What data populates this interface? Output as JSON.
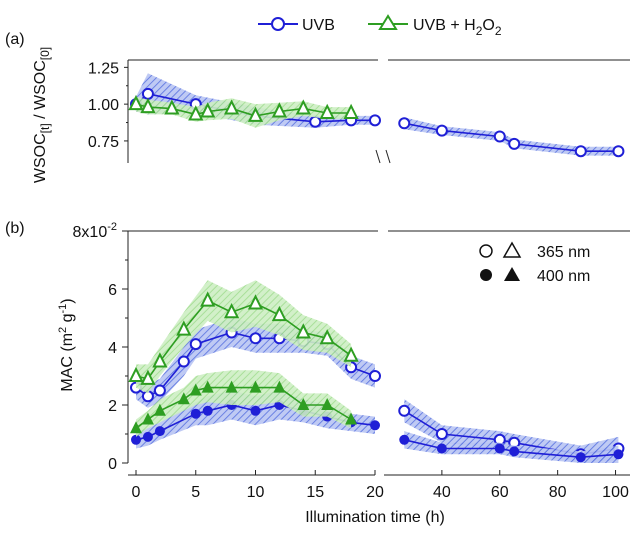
{
  "colors": {
    "uvb": "#1f1fd6",
    "uvb_h2o2": "#2e9e22",
    "uvb_band": "#6f86e6",
    "uvb_h2o2_band": "#8fdc7e",
    "axis": "#222222"
  },
  "legend": {
    "uvb": "UVB",
    "uvb_h2o2_prefix": "UVB + H",
    "sub2a": "2",
    "o": "O",
    "sub2b": "2"
  },
  "panel_a": {
    "tag": "(a)",
    "ylabel_main1": "WSOC",
    "ylabel_sub1": "[t]",
    "ylabel_mid": " / WSOC",
    "ylabel_sub2": "[0]",
    "yticks": [
      "0.75",
      "1.00",
      "1.25"
    ]
  },
  "panel_b": {
    "tag": "(b)",
    "ylabel_pre": "MAC  (m",
    "ylabel_sup1": "2",
    "ylabel_mid": " g",
    "ylabel_sup2": "-1",
    "ylabel_post": ")",
    "yticks": [
      "0",
      "2",
      "4",
      "6",
      "8x10"
    ],
    "ytop_exp": "-2",
    "legend_365": "365 nm",
    "legend_400": "400 nm"
  },
  "xaxis": {
    "left_ticks": [
      "0",
      "5",
      "10",
      "15",
      "20"
    ],
    "right_ticks": [
      "40",
      "60",
      "80",
      "100"
    ],
    "label": "Illumination  time (h)"
  },
  "chart_data": [
    {
      "type": "line",
      "panel": "a",
      "x_segments": [
        [
          0,
          20
        ],
        [
          20,
          105
        ]
      ],
      "ylim": [
        0.6,
        1.3
      ],
      "series": [
        {
          "name": "UVB",
          "marker": "circle-open",
          "x": [
            0,
            1,
            5,
            10,
            15,
            18,
            20,
            27,
            40,
            60,
            65,
            88,
            101
          ],
          "y": [
            1.0,
            1.07,
            1.0,
            0.92,
            0.88,
            0.89,
            0.89,
            0.87,
            0.82,
            0.78,
            0.73,
            0.68,
            0.68
          ],
          "band": [
            0.05,
            0.14,
            0.06,
            0.06,
            0.04,
            0.03,
            0.03,
            0.04,
            0.03,
            0.03,
            0.03,
            0.03,
            0.03
          ]
        },
        {
          "name": "UVB + H2O2",
          "marker": "triangle-open",
          "x": [
            0,
            1,
            3,
            5,
            6,
            8,
            10,
            12,
            14,
            16,
            18
          ],
          "y": [
            1.0,
            0.98,
            0.97,
            0.93,
            0.95,
            0.97,
            0.92,
            0.95,
            0.97,
            0.94,
            0.94
          ],
          "band": [
            0.05,
            0.05,
            0.04,
            0.05,
            0.06,
            0.07,
            0.08,
            0.06,
            0.05,
            0.04,
            0.04
          ]
        }
      ]
    },
    {
      "type": "line",
      "panel": "b",
      "x_segments": [
        [
          0,
          20
        ],
        [
          20,
          105
        ]
      ],
      "ylim": [
        0,
        0.08
      ],
      "series": [
        {
          "name": "UVB 365 nm",
          "marker": "circle-open",
          "x": [
            0,
            1,
            2,
            4,
            5,
            8,
            10,
            12,
            14,
            16,
            18,
            20,
            27,
            40,
            60,
            65,
            88,
            101
          ],
          "y": [
            0.026,
            0.023,
            0.025,
            0.035,
            0.041,
            0.045,
            0.043,
            0.043,
            0.042,
            0.041,
            0.033,
            0.03,
            0.018,
            0.01,
            0.008,
            0.007,
            0.003,
            0.005
          ],
          "band": [
            0.004,
            0.004,
            0.004,
            0.005,
            0.005,
            0.005,
            0.005,
            0.005,
            0.004,
            0.004,
            0.004,
            0.004,
            0.004,
            0.003,
            0.003,
            0.003,
            0.003,
            0.004
          ]
        },
        {
          "name": "UVB 400 nm",
          "marker": "circle-filled",
          "x": [
            0,
            1,
            2,
            5,
            6,
            8,
            10,
            12,
            14,
            16,
            18,
            20,
            27,
            40,
            60,
            65,
            88,
            101
          ],
          "y": [
            0.008,
            0.009,
            0.011,
            0.017,
            0.018,
            0.02,
            0.018,
            0.02,
            0.018,
            0.016,
            0.014,
            0.013,
            0.008,
            0.005,
            0.005,
            0.004,
            0.002,
            0.003
          ],
          "band": [
            0.003,
            0.003,
            0.003,
            0.004,
            0.005,
            0.005,
            0.005,
            0.005,
            0.004,
            0.004,
            0.003,
            0.003,
            0.003,
            0.002,
            0.002,
            0.002,
            0.002,
            0.003
          ]
        },
        {
          "name": "UVB + H2O2 365 nm",
          "marker": "triangle-open",
          "x": [
            0,
            1,
            2,
            4,
            6,
            8,
            10,
            12,
            14,
            16,
            18
          ],
          "y": [
            0.03,
            0.029,
            0.035,
            0.046,
            0.056,
            0.052,
            0.055,
            0.051,
            0.045,
            0.043,
            0.037
          ],
          "band": [
            0.004,
            0.005,
            0.005,
            0.006,
            0.007,
            0.007,
            0.008,
            0.007,
            0.006,
            0.005,
            0.004
          ]
        },
        {
          "name": "UVB + H2O2 400 nm",
          "marker": "triangle-filled",
          "x": [
            0,
            1,
            2,
            4,
            5,
            6,
            8,
            10,
            12,
            14,
            16,
            18
          ],
          "y": [
            0.012,
            0.015,
            0.018,
            0.022,
            0.025,
            0.026,
            0.026,
            0.026,
            0.026,
            0.02,
            0.02,
            0.015
          ],
          "band": [
            0.003,
            0.003,
            0.004,
            0.004,
            0.005,
            0.005,
            0.006,
            0.006,
            0.005,
            0.004,
            0.004,
            0.003
          ]
        }
      ]
    }
  ]
}
